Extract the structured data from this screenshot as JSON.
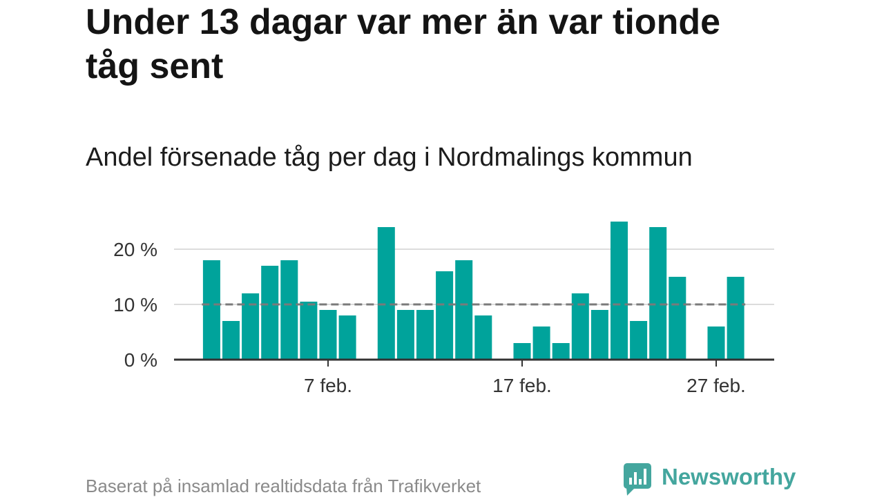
{
  "chart_data": {
    "type": "bar",
    "title": "Under 13 dagar var mer än var tionde tåg sent",
    "subtitle": "Andel försenade tåg per dag i Nordmalings kommun",
    "x": [
      "1 feb.",
      "2 feb.",
      "3 feb.",
      "4 feb.",
      "5 feb.",
      "6 feb.",
      "7 feb.",
      "8 feb.",
      "10 feb.",
      "11 feb.",
      "12 feb.",
      "13 feb.",
      "14 feb.",
      "15 feb.",
      "17 feb.",
      "18 feb.",
      "19 feb.",
      "20 feb.",
      "21 feb.",
      "22 feb.",
      "23 feb.",
      "24 feb.",
      "25 feb.",
      "27 feb.",
      "28 feb."
    ],
    "values": [
      18,
      7,
      12,
      17,
      18,
      10.5,
      9,
      8,
      24,
      9,
      9,
      16,
      18,
      8,
      3,
      6,
      3,
      12,
      9,
      25,
      7,
      24,
      15,
      6,
      15
    ],
    "ylim": [
      0,
      25
    ],
    "x_ticks": [
      "7 feb.",
      "17 feb.",
      "27 feb."
    ],
    "y_ticks": [
      "0 %",
      "10 %",
      "20 %"
    ],
    "grid": true,
    "reference_line": {
      "value": 10,
      "color": "#7a7a7a"
    },
    "bar_color": "#00a39b"
  },
  "source": "Baserat på insamlad realtidsdata från Trafikverket",
  "logo": {
    "text": "Newsworthy",
    "icon": "newsworthy-chart-bubble-icon",
    "color": "#44a69e"
  }
}
